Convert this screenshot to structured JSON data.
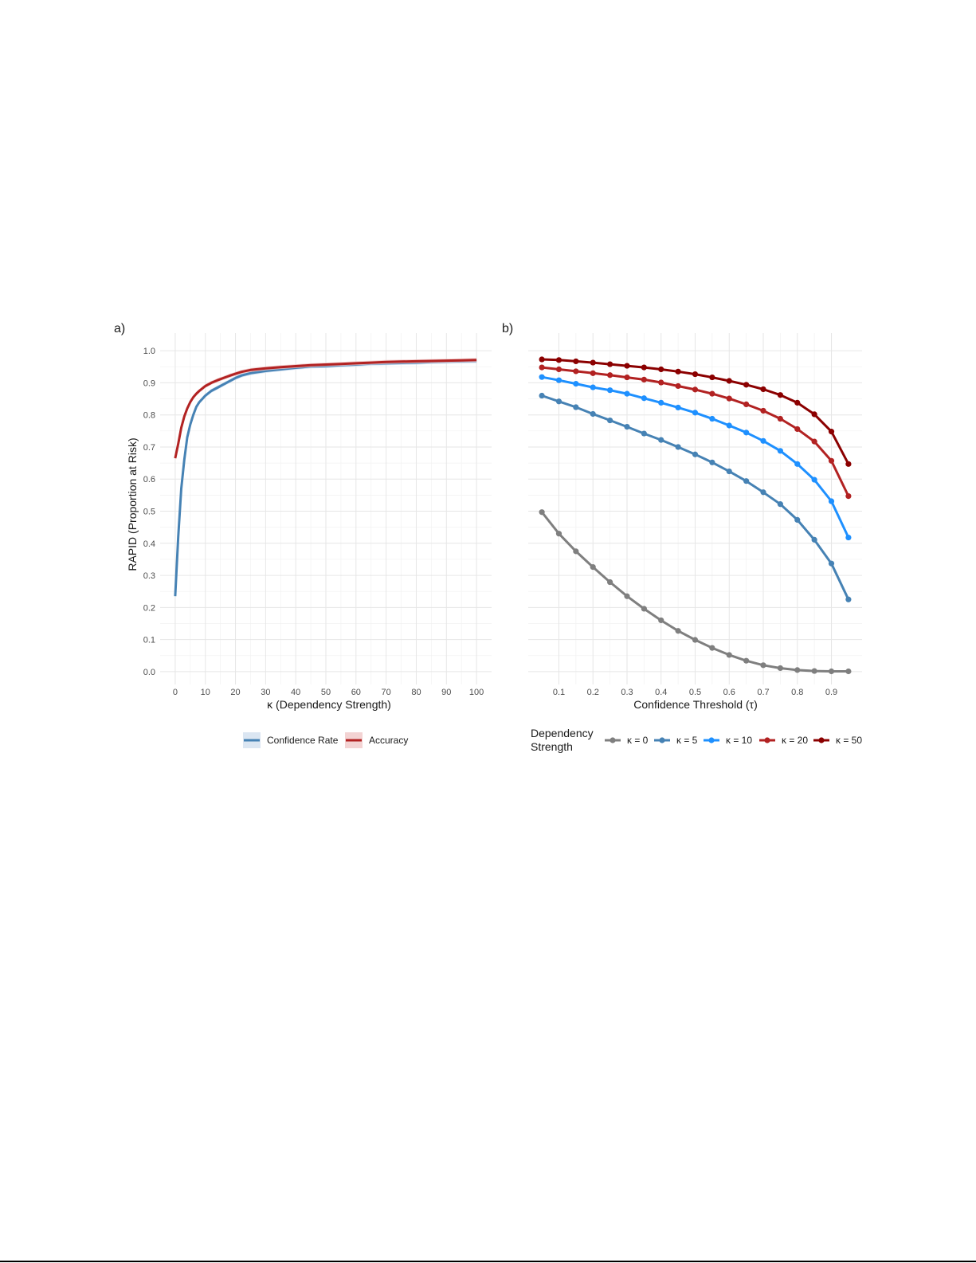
{
  "chart_data": [
    {
      "panel_label": "a)",
      "type": "line",
      "xlabel": "κ (Dependency Strength)",
      "ylabel": "RAPID (Proportion at Risk)",
      "xlim": [
        -5,
        105
      ],
      "ylim": [
        -0.04,
        1.055
      ],
      "xticks": [
        0,
        10,
        20,
        30,
        40,
        50,
        60,
        70,
        80,
        90,
        100
      ],
      "yticks": [
        "0.0",
        "0.1",
        "0.2",
        "0.3",
        "0.4",
        "0.5",
        "0.6",
        "0.7",
        "0.8",
        "0.9",
        "1.0"
      ],
      "grid": true,
      "legend_position": "bottom",
      "series": [
        {
          "name": "Confidence Rate",
          "color": "#4682B4",
          "band_color": "#c6d9ef",
          "x": [
            0,
            1,
            2,
            3,
            4,
            5,
            6,
            7,
            8,
            10,
            12,
            14,
            16,
            18,
            20,
            22,
            25,
            30,
            35,
            40,
            45,
            50,
            55,
            60,
            65,
            70,
            75,
            80,
            85,
            90,
            95,
            100
          ],
          "y": [
            0.235,
            0.42,
            0.57,
            0.66,
            0.73,
            0.77,
            0.8,
            0.825,
            0.84,
            0.86,
            0.875,
            0.885,
            0.895,
            0.905,
            0.915,
            0.923,
            0.93,
            0.937,
            0.942,
            0.947,
            0.951,
            0.952,
            0.955,
            0.957,
            0.96,
            0.961,
            0.962,
            0.963,
            0.965,
            0.966,
            0.967,
            0.968
          ]
        },
        {
          "name": "Accuracy",
          "color": "#B22222",
          "band_color": "#f0c4c4",
          "x": [
            0,
            1,
            2,
            3,
            4,
            5,
            6,
            7,
            8,
            10,
            12,
            14,
            16,
            18,
            20,
            22,
            25,
            30,
            35,
            40,
            45,
            50,
            55,
            60,
            65,
            70,
            75,
            80,
            85,
            90,
            95,
            100
          ],
          "y": [
            0.665,
            0.71,
            0.76,
            0.795,
            0.82,
            0.84,
            0.855,
            0.866,
            0.875,
            0.89,
            0.9,
            0.908,
            0.915,
            0.922,
            0.928,
            0.934,
            0.94,
            0.945,
            0.949,
            0.952,
            0.955,
            0.957,
            0.959,
            0.961,
            0.963,
            0.965,
            0.966,
            0.967,
            0.968,
            0.969,
            0.97,
            0.971
          ]
        }
      ]
    },
    {
      "panel_label": "b)",
      "type": "line",
      "xlabel": "Confidence Threshold (τ)",
      "ylabel": "",
      "xlim": [
        0.01,
        0.99
      ],
      "ylim": [
        -0.04,
        1.055
      ],
      "xticks": [
        "0.1",
        "0.2",
        "0.3",
        "0.4",
        "0.5",
        "0.6",
        "0.7",
        "0.8",
        "0.9"
      ],
      "grid": true,
      "legend_title": [
        "Dependency",
        "Strength"
      ],
      "legend_position": "bottom",
      "x": [
        0.05,
        0.1,
        0.15,
        0.2,
        0.25,
        0.3,
        0.35,
        0.4,
        0.45,
        0.5,
        0.55,
        0.6,
        0.65,
        0.7,
        0.75,
        0.8,
        0.85,
        0.9,
        0.95
      ],
      "series": [
        {
          "name": "κ = 0",
          "color": "#7f7f7f",
          "values": [
            0.497,
            0.43,
            0.375,
            0.326,
            0.279,
            0.235,
            0.196,
            0.16,
            0.127,
            0.099,
            0.074,
            0.052,
            0.034,
            0.02,
            0.011,
            0.005,
            0.002,
            0.001,
            0.001
          ]
        },
        {
          "name": "κ = 5",
          "color": "#4682B4",
          "values": [
            0.86,
            0.842,
            0.824,
            0.803,
            0.783,
            0.763,
            0.742,
            0.722,
            0.7,
            0.677,
            0.652,
            0.624,
            0.594,
            0.559,
            0.522,
            0.473,
            0.411,
            0.337,
            0.225
          ]
        },
        {
          "name": "κ = 10",
          "color": "#1E90FF",
          "values": [
            0.918,
            0.908,
            0.897,
            0.886,
            0.877,
            0.866,
            0.852,
            0.838,
            0.823,
            0.807,
            0.788,
            0.767,
            0.745,
            0.719,
            0.688,
            0.647,
            0.598,
            0.531,
            0.418
          ]
        },
        {
          "name": "κ = 20",
          "color": "#B22222",
          "values": [
            0.948,
            0.942,
            0.936,
            0.93,
            0.924,
            0.917,
            0.91,
            0.901,
            0.89,
            0.879,
            0.866,
            0.851,
            0.833,
            0.813,
            0.788,
            0.756,
            0.717,
            0.657,
            0.547
          ]
        },
        {
          "name": "κ = 50",
          "color": "#8B0000",
          "values": [
            0.973,
            0.971,
            0.967,
            0.963,
            0.958,
            0.953,
            0.948,
            0.942,
            0.935,
            0.927,
            0.917,
            0.906,
            0.894,
            0.88,
            0.862,
            0.838,
            0.802,
            0.748,
            0.647
          ]
        }
      ]
    }
  ]
}
